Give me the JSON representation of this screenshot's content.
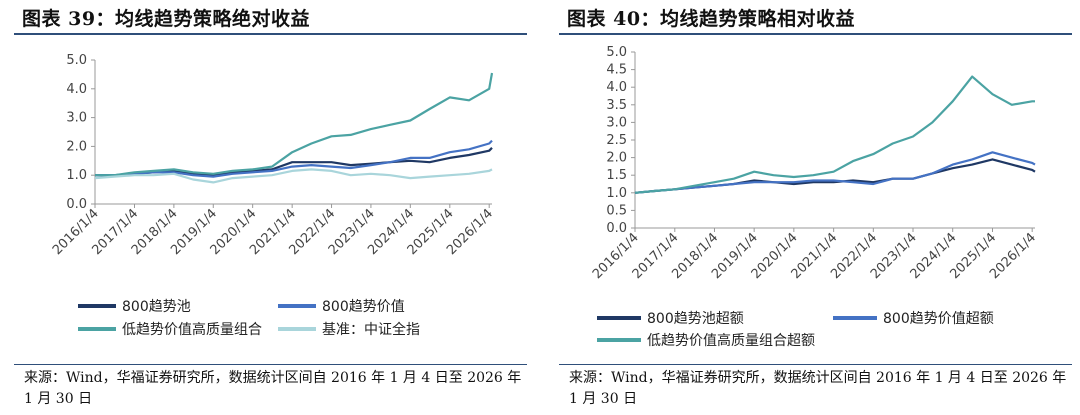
{
  "charts": [
    {
      "title": "图表 39：均线趋势策略绝对收益",
      "source": "来源：Wind，华福证券研究所，数据统计区间自 2016 年 1 月 4 日至 2026 年 1 月 30 日"
    },
    {
      "title": "图表 40：均线趋势策略相对收益",
      "source": "来源：Wind，华福证券研究所，数据统计区间自 2016 年 1 月 4 日至 2026 年 1 月 30 日"
    }
  ],
  "chart_data": [
    {
      "type": "line",
      "title": "图表 39：均线趋势策略绝对收益",
      "x_ticks": [
        "2016/1/4",
        "2017/1/4",
        "2018/1/4",
        "2019/1/4",
        "2020/1/4",
        "2021/1/4",
        "2022/1/4",
        "2023/1/4",
        "2024/1/4",
        "2025/1/4",
        "2026/1/4"
      ],
      "xlim": [
        "2016-01-04",
        "2026-01-30"
      ],
      "ylim": [
        0,
        5
      ],
      "y_ticks": [
        "0.0",
        "1.0",
        "2.0",
        "3.0",
        "4.0",
        "5.0"
      ],
      "grid": false,
      "legend_position": "bottom",
      "series": [
        {
          "name": "800趋势池",
          "color": "#1f3864",
          "x": [
            "2016-01-04",
            "2016-07-01",
            "2017-01-04",
            "2017-07-01",
            "2018-01-04",
            "2018-07-01",
            "2019-01-04",
            "2019-07-01",
            "2020-01-04",
            "2020-07-01",
            "2021-01-04",
            "2021-07-01",
            "2022-01-04",
            "2022-07-01",
            "2023-01-04",
            "2023-07-01",
            "2024-01-04",
            "2024-07-01",
            "2025-01-04",
            "2025-07-01",
            "2026-01-04",
            "2026-01-30"
          ],
          "y": [
            1.0,
            1.0,
            1.05,
            1.1,
            1.15,
            1.05,
            1.0,
            1.1,
            1.15,
            1.2,
            1.45,
            1.45,
            1.45,
            1.35,
            1.4,
            1.45,
            1.5,
            1.45,
            1.6,
            1.7,
            1.85,
            1.95
          ]
        },
        {
          "name": "800趋势价值",
          "color": "#4472c4",
          "x": [
            "2016-01-04",
            "2016-07-01",
            "2017-01-04",
            "2017-07-01",
            "2018-01-04",
            "2018-07-01",
            "2019-01-04",
            "2019-07-01",
            "2020-01-04",
            "2020-07-01",
            "2021-01-04",
            "2021-07-01",
            "2022-01-04",
            "2022-07-01",
            "2023-01-04",
            "2023-07-01",
            "2024-01-04",
            "2024-07-01",
            "2025-01-04",
            "2025-07-01",
            "2026-01-04",
            "2026-01-30"
          ],
          "y": [
            1.0,
            1.0,
            1.05,
            1.1,
            1.1,
            1.0,
            0.95,
            1.05,
            1.1,
            1.15,
            1.3,
            1.35,
            1.3,
            1.25,
            1.35,
            1.45,
            1.6,
            1.6,
            1.8,
            1.9,
            2.1,
            2.2
          ]
        },
        {
          "name": "低趋势价值高质量组合",
          "color": "#4ba3a3",
          "x": [
            "2016-01-04",
            "2016-07-01",
            "2017-01-04",
            "2017-07-01",
            "2018-01-04",
            "2018-07-01",
            "2019-01-04",
            "2019-07-01",
            "2020-01-04",
            "2020-07-01",
            "2021-01-04",
            "2021-07-01",
            "2022-01-04",
            "2022-07-01",
            "2023-01-04",
            "2023-07-01",
            "2024-01-04",
            "2024-07-01",
            "2025-01-04",
            "2025-07-01",
            "2026-01-04",
            "2026-01-30"
          ],
          "y": [
            1.0,
            1.0,
            1.1,
            1.15,
            1.2,
            1.1,
            1.05,
            1.15,
            1.2,
            1.3,
            1.8,
            2.1,
            2.35,
            2.4,
            2.6,
            2.75,
            2.9,
            3.3,
            3.7,
            3.6,
            4.0,
            4.55
          ]
        },
        {
          "name": "基准：中证全指",
          "color": "#a9d5db",
          "x": [
            "2016-01-04",
            "2016-07-01",
            "2017-01-04",
            "2017-07-01",
            "2018-01-04",
            "2018-07-01",
            "2019-01-04",
            "2019-07-01",
            "2020-01-04",
            "2020-07-01",
            "2021-01-04",
            "2021-07-01",
            "2022-01-04",
            "2022-07-01",
            "2023-01-04",
            "2023-07-01",
            "2024-01-04",
            "2024-07-01",
            "2025-01-04",
            "2025-07-01",
            "2026-01-04",
            "2026-01-30"
          ],
          "y": [
            0.9,
            0.95,
            1.0,
            1.0,
            1.05,
            0.85,
            0.75,
            0.9,
            0.95,
            1.0,
            1.15,
            1.2,
            1.15,
            1.0,
            1.05,
            1.0,
            0.9,
            0.95,
            1.0,
            1.05,
            1.15,
            1.2
          ]
        }
      ]
    },
    {
      "type": "line",
      "title": "图表 40：均线趋势策略相对收益",
      "x_ticks": [
        "2016/1/4",
        "2017/1/4",
        "2018/1/4",
        "2019/1/4",
        "2020/1/4",
        "2021/1/4",
        "2022/1/4",
        "2023/1/4",
        "2024/1/4",
        "2025/1/4",
        "2026/1/4"
      ],
      "xlim": [
        "2016-01-04",
        "2026-01-30"
      ],
      "ylim": [
        0,
        5
      ],
      "y_ticks": [
        "0.0",
        "0.5",
        "1.0",
        "1.5",
        "2.0",
        "2.5",
        "3.0",
        "3.5",
        "4.0",
        "4.5",
        "5.0"
      ],
      "grid": false,
      "legend_position": "bottom",
      "series": [
        {
          "name": "800趋势池超额",
          "color": "#1f3864",
          "x": [
            "2016-01-04",
            "2016-07-01",
            "2017-01-04",
            "2017-07-01",
            "2018-01-04",
            "2018-07-01",
            "2019-01-04",
            "2019-07-01",
            "2020-01-04",
            "2020-07-01",
            "2021-01-04",
            "2021-07-01",
            "2022-01-04",
            "2022-07-01",
            "2023-01-04",
            "2023-07-01",
            "2024-01-04",
            "2024-07-01",
            "2025-01-04",
            "2025-07-01",
            "2026-01-04",
            "2026-01-30"
          ],
          "y": [
            1.0,
            1.05,
            1.1,
            1.15,
            1.2,
            1.25,
            1.35,
            1.3,
            1.25,
            1.3,
            1.3,
            1.35,
            1.3,
            1.4,
            1.4,
            1.55,
            1.7,
            1.8,
            1.95,
            1.8,
            1.65,
            1.6
          ]
        },
        {
          "name": "800趋势价值超额",
          "color": "#4472c4",
          "x": [
            "2016-01-04",
            "2016-07-01",
            "2017-01-04",
            "2017-07-01",
            "2018-01-04",
            "2018-07-01",
            "2019-01-04",
            "2019-07-01",
            "2020-01-04",
            "2020-07-01",
            "2021-01-04",
            "2021-07-01",
            "2022-01-04",
            "2022-07-01",
            "2023-01-04",
            "2023-07-01",
            "2024-01-04",
            "2024-07-01",
            "2025-01-04",
            "2025-07-01",
            "2026-01-04",
            "2026-01-30"
          ],
          "y": [
            1.0,
            1.05,
            1.1,
            1.15,
            1.2,
            1.25,
            1.3,
            1.3,
            1.3,
            1.35,
            1.35,
            1.3,
            1.25,
            1.4,
            1.4,
            1.55,
            1.8,
            1.95,
            2.15,
            2.0,
            1.85,
            1.8
          ]
        },
        {
          "name": "低趋势价值高质量组合超额",
          "color": "#4ba3a3",
          "x": [
            "2016-01-04",
            "2016-07-01",
            "2017-01-04",
            "2017-07-01",
            "2018-01-04",
            "2018-07-01",
            "2019-01-04",
            "2019-07-01",
            "2020-01-04",
            "2020-07-01",
            "2021-01-04",
            "2021-07-01",
            "2022-01-04",
            "2022-07-01",
            "2023-01-04",
            "2023-07-01",
            "2024-01-04",
            "2024-07-01",
            "2025-01-04",
            "2025-07-01",
            "2026-01-04",
            "2026-01-30"
          ],
          "y": [
            1.0,
            1.05,
            1.1,
            1.2,
            1.3,
            1.4,
            1.6,
            1.5,
            1.45,
            1.5,
            1.6,
            1.9,
            2.1,
            2.4,
            2.6,
            3.0,
            3.6,
            4.3,
            3.8,
            3.5,
            3.6,
            3.6
          ]
        }
      ]
    }
  ]
}
